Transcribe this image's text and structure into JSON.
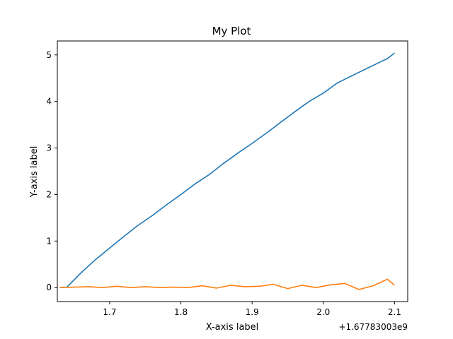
{
  "chart_data": {
    "type": "line",
    "title": "My Plot",
    "xlabel": "X-axis label",
    "ylabel": "Y-axis label",
    "x_offset_label": "+1.67783003e9",
    "xlim": [
      1.6265,
      2.1185
    ],
    "ylim": [
      -0.3,
      5.3
    ],
    "xticks": [
      1.7,
      1.8,
      1.9,
      2.0,
      2.1
    ],
    "xtick_labels": [
      "1.7",
      "1.8",
      "1.9",
      "2.0",
      "2.1"
    ],
    "yticks": [
      0,
      1,
      2,
      3,
      4,
      5
    ],
    "ytick_labels": [
      "0",
      "1",
      "2",
      "3",
      "4",
      "5"
    ],
    "grid": false,
    "legend": "none",
    "series": [
      {
        "color": "#1f77b4",
        "x": [
          1.63,
          1.64,
          1.66,
          1.68,
          1.7,
          1.72,
          1.74,
          1.76,
          1.78,
          1.8,
          1.82,
          1.84,
          1.86,
          1.88,
          1.9,
          1.92,
          1.94,
          1.96,
          1.98,
          2.0,
          2.02,
          2.04,
          2.06,
          2.08,
          2.09,
          2.1
        ],
        "y": [
          0.0,
          0.01,
          0.32,
          0.6,
          0.85,
          1.1,
          1.34,
          1.55,
          1.78,
          2.0,
          2.23,
          2.43,
          2.67,
          2.89,
          3.1,
          3.32,
          3.55,
          3.78,
          4.0,
          4.18,
          4.4,
          4.55,
          4.7,
          4.85,
          4.92,
          5.04
        ]
      },
      {
        "color": "#ff7f0e",
        "x": [
          1.63,
          1.65,
          1.67,
          1.69,
          1.71,
          1.73,
          1.75,
          1.77,
          1.79,
          1.81,
          1.83,
          1.85,
          1.87,
          1.89,
          1.91,
          1.93,
          1.95,
          1.97,
          1.99,
          2.01,
          2.03,
          2.05,
          2.07,
          2.09,
          2.1
        ],
        "y": [
          0.0,
          0.01,
          0.02,
          0.0,
          0.03,
          0.0,
          0.02,
          0.0,
          0.01,
          0.0,
          0.04,
          -0.01,
          0.05,
          0.02,
          0.03,
          0.07,
          -0.02,
          0.05,
          0.0,
          0.06,
          0.09,
          -0.04,
          0.04,
          0.18,
          0.05
        ]
      }
    ]
  }
}
